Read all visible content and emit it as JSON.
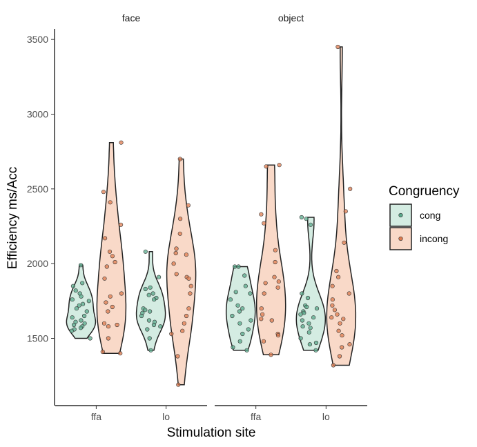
{
  "chart_data": {
    "type": "violin",
    "xlabel": "Stimulation site",
    "ylabel": "Efficiency ms/Acc",
    "ylim": [
      1050,
      3570
    ],
    "yticks": [
      1500,
      2000,
      2500,
      3000,
      3500
    ],
    "categories": [
      "ffa",
      "lo"
    ],
    "legend": {
      "title": "Congruency",
      "position": "right",
      "entries": [
        "cong",
        "incong"
      ]
    },
    "colors": {
      "cong_fill": "#d4ece2",
      "incong_fill": "#f9d9c8",
      "cong_point": "#5aa98b",
      "incong_point": "#dd7b4f",
      "outline": "#222222"
    },
    "panels": [
      {
        "label": "face",
        "groups": [
          {
            "site": "ffa",
            "congruency": "cong",
            "values": [
              1990,
              1870,
              1850,
              1820,
              1800,
              1780,
              1760,
              1750,
              1730,
              1720,
              1700,
              1680,
              1650,
              1640,
              1620,
              1610,
              1600,
              1590,
              1580,
              1570,
              1560,
              1550,
              1500
            ]
          },
          {
            "site": "ffa",
            "congruency": "incong",
            "values": [
              2810,
              2480,
              2410,
              2260,
              2170,
              2080,
              2050,
              2010,
              1980,
              1900,
              1800,
              1780,
              1740,
              1710,
              1680,
              1600,
              1590,
              1580,
              1500,
              1410,
              1400
            ]
          },
          {
            "site": "lo",
            "congruency": "cong",
            "values": [
              2080,
              1910,
              1840,
              1830,
              1800,
              1790,
              1770,
              1760,
              1700,
              1690,
              1680,
              1670,
              1650,
              1620,
              1610,
              1590,
              1580,
              1560,
              1500,
              1420
            ]
          },
          {
            "site": "lo",
            "congruency": "incong",
            "values": [
              2700,
              2390,
              2300,
              2200,
              2100,
              2070,
              2060,
              2000,
              1930,
              1910,
              1900,
              1850,
              1800,
              1700,
              1650,
              1600,
              1550,
              1530,
              1380,
              1190
            ]
          }
        ]
      },
      {
        "label": "object",
        "groups": [
          {
            "site": "ffa",
            "congruency": "cong",
            "values": [
              1980,
              1980,
              1920,
              1850,
              1810,
              1800,
              1760,
              1720,
              1700,
              1680,
              1650,
              1620,
              1600,
              1560,
              1530,
              1480,
              1440,
              1420
            ]
          },
          {
            "site": "ffa",
            "congruency": "incong",
            "values": [
              2660,
              2650,
              2330,
              2270,
              2090,
              2010,
              1910,
              1880,
              1870,
              1840,
              1800,
              1700,
              1660,
              1630,
              1620,
              1530,
              1520,
              1480,
              1390
            ]
          },
          {
            "site": "lo",
            "congruency": "cong",
            "values": [
              2310,
              2300,
              2260,
              1800,
              1770,
              1720,
              1710,
              1700,
              1680,
              1670,
              1660,
              1640,
              1620,
              1600,
              1580,
              1570,
              1540,
              1500,
              1470,
              1460,
              1420
            ]
          },
          {
            "site": "lo",
            "congruency": "incong",
            "values": [
              3450,
              2500,
              2350,
              2140,
              1950,
              1910,
              1850,
              1800,
              1760,
              1720,
              1690,
              1660,
              1640,
              1630,
              1600,
              1550,
              1520,
              1460,
              1440,
              1380,
              1320
            ]
          }
        ]
      }
    ]
  }
}
